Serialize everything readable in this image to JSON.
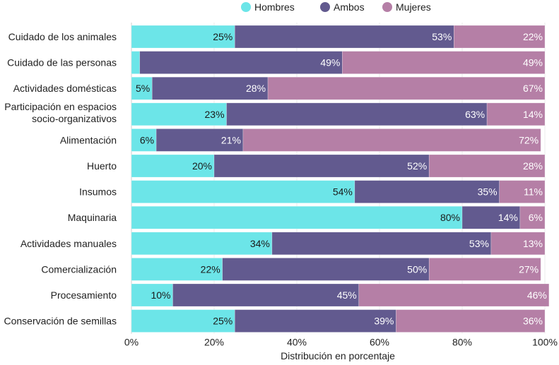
{
  "chart_data": {
    "type": "bar",
    "orientation": "horizontal",
    "stacked": true,
    "title": "",
    "xlabel": "Distribución en porcentaje",
    "ylabel": "",
    "xlim": [
      0,
      100
    ],
    "xticks": [
      "0%",
      "20%",
      "40%",
      "60%",
      "80%",
      "100%"
    ],
    "grid": true,
    "legend_position": "top-center",
    "categories": [
      [
        "Cuidado de los animales"
      ],
      [
        "Cuidado de las personas"
      ],
      [
        "Actividades domésticas"
      ],
      [
        "Participación en espacios",
        "socio-organizativos"
      ],
      [
        "Alimentación"
      ],
      [
        "Huerto"
      ],
      [
        "Insumos"
      ],
      [
        "Maquinaria"
      ],
      [
        "Actividades manuales"
      ],
      [
        "Comercialización"
      ],
      [
        "Procesamiento"
      ],
      [
        "Conservación de semillas"
      ]
    ],
    "series": [
      {
        "name": "Hombres",
        "color": "#6ce5e8",
        "label_color": "dark",
        "values": [
          25,
          2,
          5,
          23,
          6,
          20,
          54,
          80,
          34,
          22,
          10,
          25
        ],
        "labels": [
          "25%",
          "",
          "5%",
          "23%",
          "6%",
          "20%",
          "54%",
          "80%",
          "34%",
          "22%",
          "10%",
          "25%"
        ]
      },
      {
        "name": "Ambos",
        "color": "#625a8f",
        "label_color": "light",
        "values": [
          53,
          49,
          28,
          63,
          21,
          52,
          35,
          14,
          53,
          50,
          45,
          39
        ],
        "labels": [
          "53%",
          "49%",
          "28%",
          "63%",
          "21%",
          "52%",
          "35%",
          "14%",
          "53%",
          "50%",
          "45%",
          "39%"
        ]
      },
      {
        "name": "Mujeres",
        "color": "#b57fa6",
        "label_color": "light",
        "values": [
          22,
          49,
          67,
          14,
          72,
          28,
          11,
          6,
          13,
          27,
          46,
          36
        ],
        "labels": [
          "22%",
          "49%",
          "67%",
          "14%",
          "72%",
          "28%",
          "11%",
          "6%",
          "13%",
          "27%",
          "46%",
          "36%"
        ]
      }
    ]
  }
}
